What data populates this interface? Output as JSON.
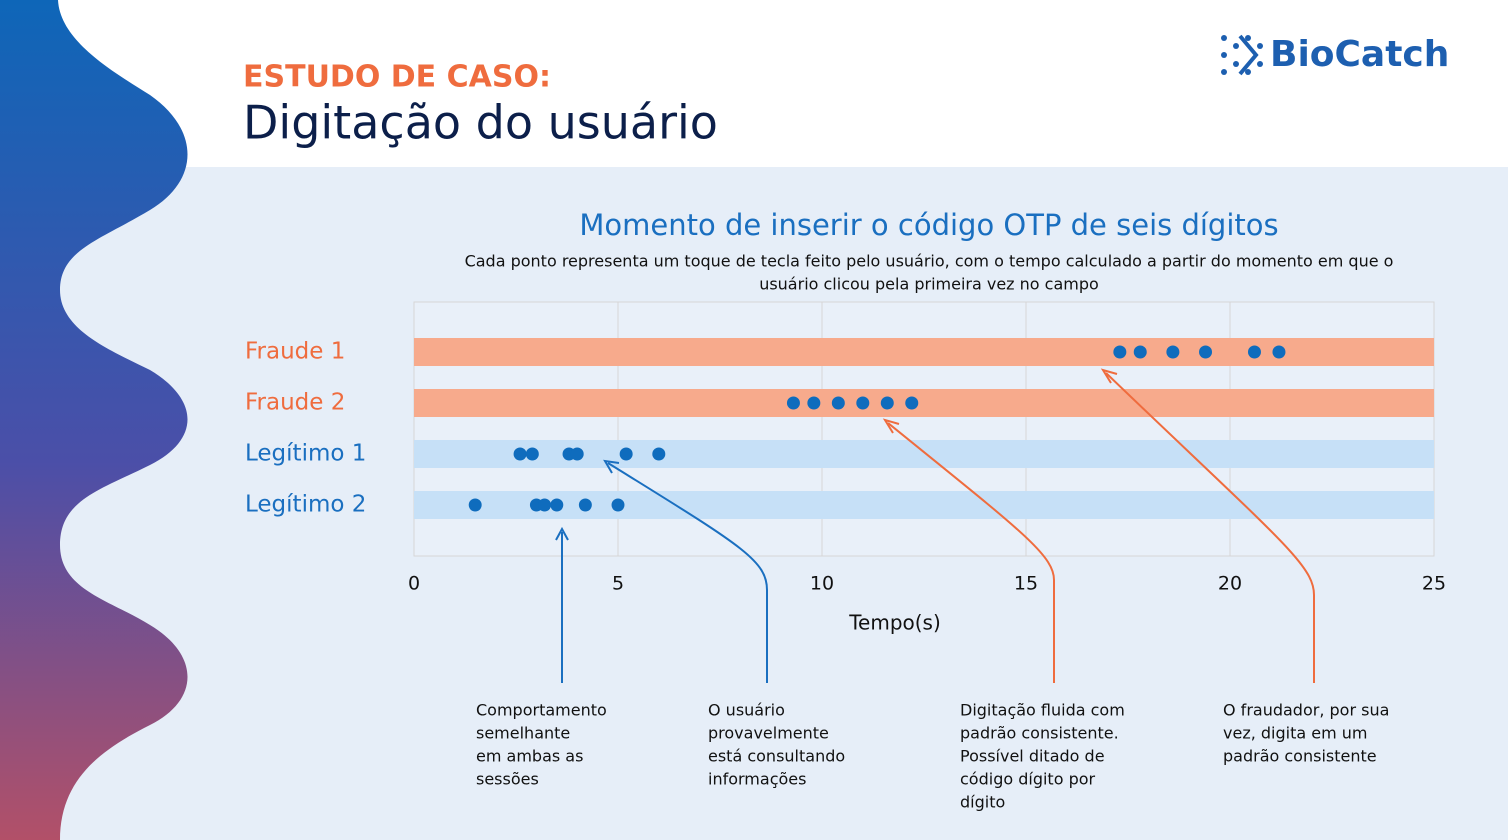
{
  "header": {
    "kicker": "ESTUDO DE CASO:",
    "title": "Digitação do usuário",
    "logo": "BioCatch"
  },
  "chart_data": {
    "type": "strip",
    "title": "Momento de inserir o código OTP de seis dígitos",
    "subtitle": [
      "Cada ponto representa um toque de tecla feito pelo usuário, com o tempo calculado a partir do momento em que o",
      "usuário clicou pela primeira vez no campo"
    ],
    "xlabel": "Tempo(s)",
    "xlim": [
      0,
      25
    ],
    "xticks": [
      0,
      5,
      10,
      15,
      20,
      25
    ],
    "grid": true,
    "series": [
      {
        "name": "Fraude 1",
        "color": "#0f6cbd",
        "band_color": "#f7aa8c",
        "label_color": "#ef6c3e",
        "values": [
          17.3,
          17.8,
          18.6,
          19.4,
          20.6,
          21.2
        ]
      },
      {
        "name": "Fraude 2",
        "color": "#0f6cbd",
        "band_color": "#f7aa8c",
        "label_color": "#ef6c3e",
        "values": [
          9.3,
          9.8,
          10.4,
          11.0,
          11.6,
          12.2
        ]
      },
      {
        "name": "Legítimo 1",
        "color": "#0f6cbd",
        "band_color": "#c6e0f7",
        "label_color": "#1a6fc0",
        "values": [
          2.6,
          2.9,
          3.8,
          4.0,
          5.2,
          6.0
        ]
      },
      {
        "name": "Legítimo 2",
        "color": "#0f6cbd",
        "band_color": "#c6e0f7",
        "label_color": "#1a6fc0",
        "values": [
          1.5,
          3.0,
          3.2,
          3.5,
          4.2,
          5.0
        ]
      }
    ],
    "annotations": [
      [
        "Comportamento",
        "semelhante",
        "em ambas as",
        "sessões"
      ],
      [
        "O usuário",
        "provavelmente",
        "está consultando",
        "informações"
      ],
      [
        "Digitação fluida com",
        "padrão consistente.",
        "Possível ditado de",
        "código dígito por",
        "dígito"
      ],
      [
        "O fraudador, por sua",
        "vez, digita em um",
        "padrão consistente"
      ]
    ]
  }
}
